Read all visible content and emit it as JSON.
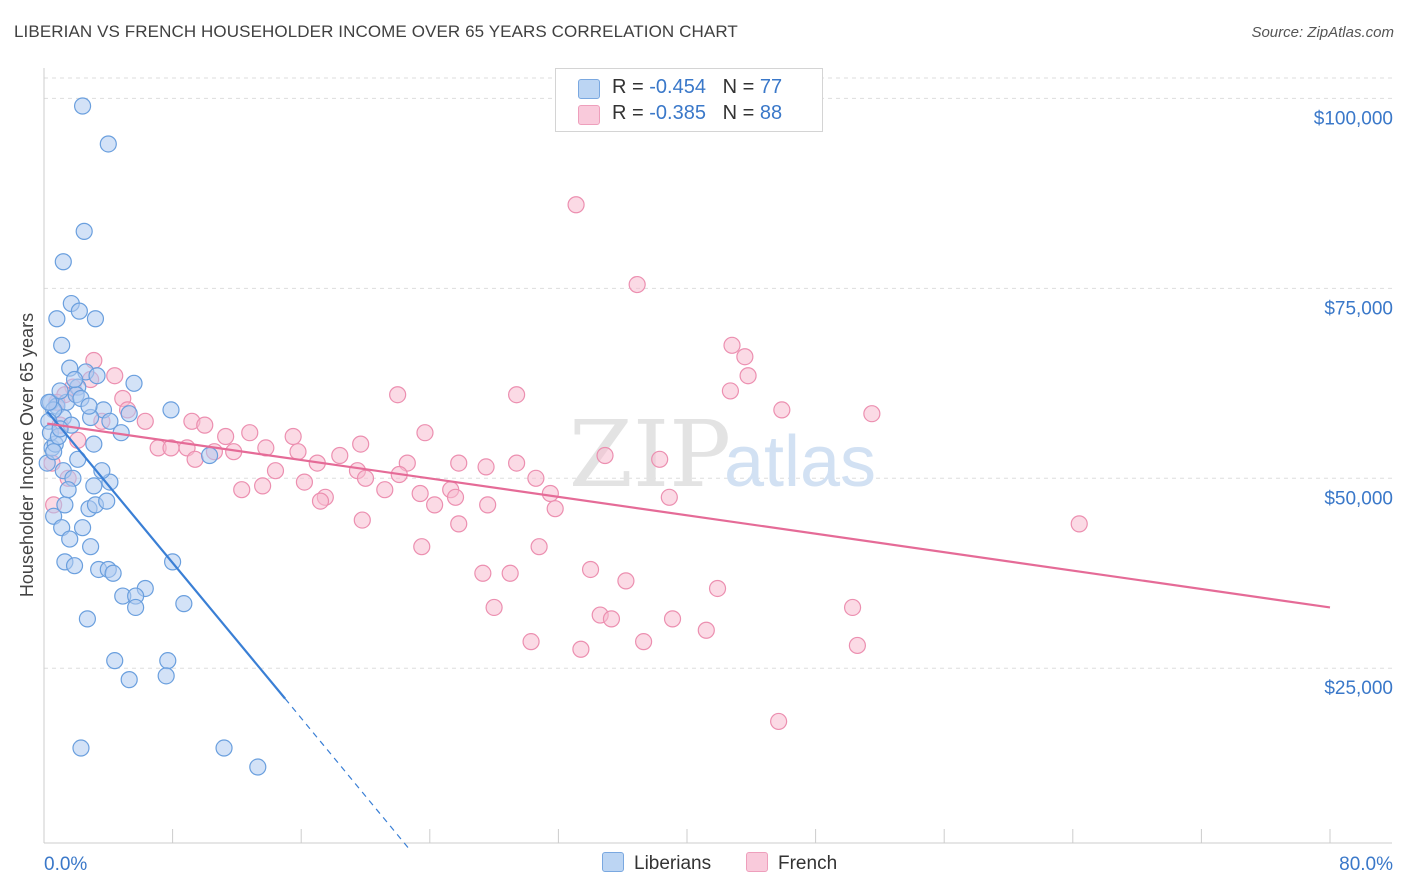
{
  "title": "LIBERIAN VS FRENCH HOUSEHOLDER INCOME OVER 65 YEARS CORRELATION CHART",
  "source": "Source: ZipAtlas.com",
  "watermark": {
    "zip": "ZIP",
    "atlas": "atlas"
  },
  "colors": {
    "liberians_fill": "#aecbf0",
    "liberians_stroke": "#6a9fde",
    "liberians_line": "#3a7fd5",
    "french_fill": "#f7bcd0",
    "french_stroke": "#ec8fb0",
    "french_line": "#e56b97",
    "tick_label": "#3a78c9",
    "grid": "#dddddd"
  },
  "legend": {
    "liberians": {
      "r_label": "R = ",
      "r_value": "-0.454",
      "n_label": "N = ",
      "n_value": "77"
    },
    "french": {
      "r_label": "R = ",
      "r_value": "-0.385",
      "n_label": "N = ",
      "n_value": "88"
    }
  },
  "chart_data": {
    "type": "scatter",
    "title": "LIBERIAN VS FRENCH HOUSEHOLDER INCOME OVER 65 YEARS CORRELATION CHART",
    "xlabel": "",
    "ylabel": "Householder Income Over 65 years",
    "xlim": [
      0,
      80
    ],
    "ylim": [
      2000,
      104000
    ],
    "x_tick_labels": [
      "0.0%",
      "80.0%"
    ],
    "y_ticks": [
      25000,
      50000,
      75000,
      100000
    ],
    "y_tick_labels": [
      "$25,000",
      "$50,000",
      "$75,000",
      "$100,000"
    ],
    "grid": "horizontal dashed",
    "legend_placement": "top-center and bottom-center",
    "series": [
      {
        "name": "Liberians",
        "points": [
          [
            2.4,
            99000
          ],
          [
            4.0,
            94000
          ],
          [
            2.5,
            82500
          ],
          [
            1.2,
            78500
          ],
          [
            1.7,
            73000
          ],
          [
            0.8,
            71000
          ],
          [
            3.2,
            71000
          ],
          [
            2.2,
            72000
          ],
          [
            1.1,
            67500
          ],
          [
            1.6,
            64500
          ],
          [
            2.6,
            64000
          ],
          [
            2.1,
            62000
          ],
          [
            5.6,
            62500
          ],
          [
            0.4,
            60000
          ],
          [
            0.8,
            59500
          ],
          [
            1.4,
            60000
          ],
          [
            1.2,
            58000
          ],
          [
            0.6,
            59000
          ],
          [
            0.3,
            57500
          ],
          [
            2.0,
            61000
          ],
          [
            2.3,
            60500
          ],
          [
            3.7,
            59000
          ],
          [
            4.1,
            57500
          ],
          [
            5.3,
            58500
          ],
          [
            7.9,
            59000
          ],
          [
            0.5,
            54000
          ],
          [
            0.7,
            54500
          ],
          [
            3.1,
            54500
          ],
          [
            10.3,
            53000
          ],
          [
            1.2,
            51000
          ],
          [
            1.8,
            50000
          ],
          [
            3.1,
            49000
          ],
          [
            4.1,
            49500
          ],
          [
            0.6,
            45000
          ],
          [
            1.3,
            46500
          ],
          [
            2.8,
            46000
          ],
          [
            3.2,
            46500
          ],
          [
            3.9,
            47000
          ],
          [
            1.1,
            43500
          ],
          [
            2.4,
            43500
          ],
          [
            1.6,
            42000
          ],
          [
            2.9,
            41000
          ],
          [
            1.3,
            39000
          ],
          [
            1.9,
            38500
          ],
          [
            3.4,
            38000
          ],
          [
            4.0,
            38000
          ],
          [
            4.3,
            37500
          ],
          [
            8.0,
            39000
          ],
          [
            6.3,
            35500
          ],
          [
            4.9,
            34500
          ],
          [
            5.7,
            34500
          ],
          [
            8.7,
            33500
          ],
          [
            5.7,
            33000
          ],
          [
            2.7,
            31500
          ],
          [
            4.4,
            26000
          ],
          [
            7.7,
            26000
          ],
          [
            5.3,
            23500
          ],
          [
            7.6,
            24000
          ],
          [
            2.3,
            14500
          ],
          [
            11.2,
            14500
          ],
          [
            13.3,
            12000
          ],
          [
            0.4,
            56000
          ],
          [
            2.9,
            58000
          ],
          [
            1.0,
            61500
          ],
          [
            1.9,
            63000
          ],
          [
            3.3,
            63500
          ],
          [
            0.9,
            55500
          ],
          [
            0.2,
            52000
          ],
          [
            1.5,
            48500
          ],
          [
            2.1,
            52500
          ],
          [
            4.8,
            56000
          ],
          [
            0.3,
            60000
          ],
          [
            1.7,
            57000
          ],
          [
            0.6,
            53500
          ],
          [
            2.8,
            59500
          ],
          [
            3.6,
            51000
          ],
          [
            1.0,
            56500
          ]
        ]
      },
      {
        "name": "French",
        "points": [
          [
            33.1,
            86000
          ],
          [
            36.9,
            75500
          ],
          [
            42.8,
            67500
          ],
          [
            43.6,
            66000
          ],
          [
            43.8,
            63500
          ],
          [
            42.7,
            61500
          ],
          [
            22.0,
            61000
          ],
          [
            29.4,
            61000
          ],
          [
            45.9,
            59000
          ],
          [
            51.5,
            58500
          ],
          [
            3.1,
            65500
          ],
          [
            2.9,
            63000
          ],
          [
            4.4,
            63500
          ],
          [
            1.8,
            62000
          ],
          [
            1.3,
            61000
          ],
          [
            4.9,
            60500
          ],
          [
            5.2,
            59000
          ],
          [
            6.3,
            57500
          ],
          [
            9.2,
            57500
          ],
          [
            10.0,
            57000
          ],
          [
            11.3,
            55500
          ],
          [
            12.8,
            56000
          ],
          [
            15.5,
            55500
          ],
          [
            23.7,
            56000
          ],
          [
            7.1,
            54000
          ],
          [
            7.9,
            54000
          ],
          [
            8.9,
            54000
          ],
          [
            10.6,
            53500
          ],
          [
            11.8,
            53500
          ],
          [
            13.8,
            54000
          ],
          [
            15.8,
            53500
          ],
          [
            18.4,
            53000
          ],
          [
            19.7,
            54500
          ],
          [
            9.4,
            52500
          ],
          [
            14.4,
            51000
          ],
          [
            17.0,
            52000
          ],
          [
            19.5,
            51000
          ],
          [
            22.6,
            52000
          ],
          [
            22.1,
            50500
          ],
          [
            25.8,
            52000
          ],
          [
            27.5,
            51500
          ],
          [
            29.4,
            52000
          ],
          [
            30.6,
            50000
          ],
          [
            31.5,
            48000
          ],
          [
            34.9,
            53000
          ],
          [
            38.3,
            52500
          ],
          [
            20.0,
            50000
          ],
          [
            12.3,
            48500
          ],
          [
            13.6,
            49000
          ],
          [
            16.2,
            49500
          ],
          [
            17.5,
            47500
          ],
          [
            17.2,
            47000
          ],
          [
            21.2,
            48500
          ],
          [
            23.4,
            48000
          ],
          [
            24.3,
            46500
          ],
          [
            25.3,
            48500
          ],
          [
            25.6,
            47500
          ],
          [
            27.6,
            46500
          ],
          [
            38.9,
            47500
          ],
          [
            31.8,
            46000
          ],
          [
            19.8,
            44500
          ],
          [
            25.8,
            44000
          ],
          [
            23.5,
            41000
          ],
          [
            30.8,
            41000
          ],
          [
            64.4,
            44000
          ],
          [
            27.3,
            37500
          ],
          [
            29.0,
            37500
          ],
          [
            34.0,
            38000
          ],
          [
            36.2,
            36500
          ],
          [
            41.9,
            35500
          ],
          [
            28.0,
            33000
          ],
          [
            34.6,
            32000
          ],
          [
            35.3,
            31500
          ],
          [
            39.1,
            31500
          ],
          [
            41.2,
            30000
          ],
          [
            50.3,
            33000
          ],
          [
            30.3,
            28500
          ],
          [
            33.4,
            27500
          ],
          [
            37.3,
            28500
          ],
          [
            50.6,
            28000
          ],
          [
            45.7,
            18000
          ],
          [
            1.0,
            57000
          ],
          [
            0.5,
            52000
          ],
          [
            1.5,
            50000
          ],
          [
            0.8,
            60000
          ],
          [
            3.6,
            57500
          ],
          [
            0.6,
            46500
          ],
          [
            2.1,
            55000
          ]
        ]
      }
    ],
    "trend_lines": [
      {
        "series": "Liberians",
        "solid": [
          [
            0.2,
            58800
          ],
          [
            15.0,
            21000
          ]
        ],
        "dashed": [
          [
            15.0,
            21000
          ],
          [
            22.8,
            1000
          ]
        ]
      },
      {
        "series": "French",
        "solid": [
          [
            0.2,
            57200
          ],
          [
            80.0,
            33000
          ]
        ]
      }
    ]
  }
}
